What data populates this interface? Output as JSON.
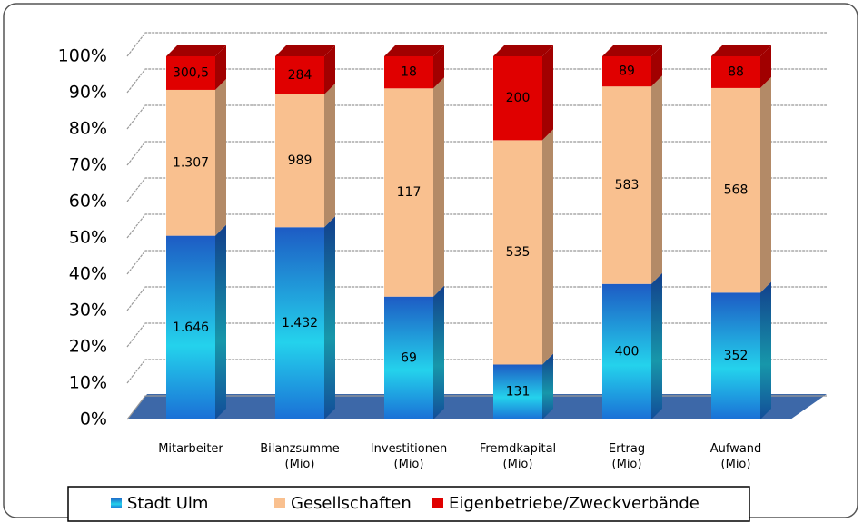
{
  "chart_data": {
    "type": "bar",
    "stacking": "percent",
    "categories": [
      "Mitarbeiter",
      "Bilanzsumme\n(Mio)",
      "Investitionen\n(Mio)",
      "Fremdkapital\n(Mio)",
      "Ertrag\n(Mio)",
      "Aufwand\n(Mio)"
    ],
    "series": [
      {
        "name": "Stadt Ulm",
        "color": "#1a6fd6",
        "values": [
          1646,
          1432,
          69,
          131,
          400,
          352
        ],
        "value_labels": [
          "1.646",
          "1.432",
          "69",
          "131",
          "400",
          "352"
        ]
      },
      {
        "name": "Gesellschaften",
        "color": "#f9c08f",
        "values": [
          1307,
          989,
          117,
          535,
          583,
          568
        ],
        "value_labels": [
          "1.307",
          "989",
          "117",
          "535",
          "583",
          "568"
        ]
      },
      {
        "name": "Eigenbetriebe/Zweckverbände",
        "color": "#e00000",
        "values": [
          300.5,
          284,
          18,
          200,
          89,
          88
        ],
        "value_labels": [
          "300,5",
          "284",
          "18",
          "200",
          "89",
          "88"
        ]
      }
    ],
    "ylim": [
      0,
      100
    ],
    "yticks": [
      {
        "value": 0,
        "label": "0%"
      },
      {
        "value": 10,
        "label": "10%"
      },
      {
        "value": 20,
        "label": "20%"
      },
      {
        "value": 30,
        "label": "30%"
      },
      {
        "value": 40,
        "label": "40%"
      },
      {
        "value": 50,
        "label": "50%"
      },
      {
        "value": 60,
        "label": "60%"
      },
      {
        "value": 70,
        "label": "70%"
      },
      {
        "value": 80,
        "label": "80%"
      },
      {
        "value": 90,
        "label": "90%"
      },
      {
        "value": 100,
        "label": "100%"
      }
    ],
    "grid": true,
    "legend": "bottom"
  }
}
